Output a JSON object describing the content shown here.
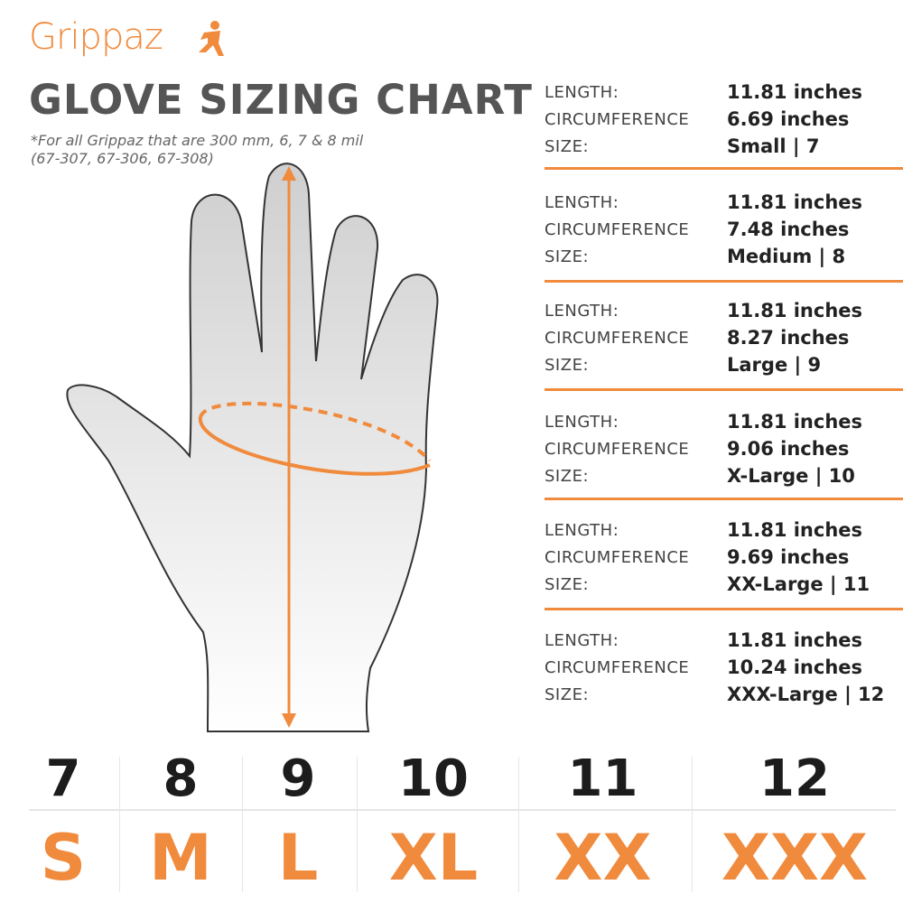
{
  "brand": {
    "logo": "Grippaz",
    "color": "#f08a3c"
  },
  "title": "GLOVE SIZING CHART",
  "note": "*For all Grippaz that are 300 mm, 6, 7 & 8 mil\n(67-307, 67-306, 67-308)",
  "labels": {
    "length": "LENGTH:",
    "circumference": "CIRCUMFERENCE",
    "size": "SIZE:"
  },
  "rows": [
    {
      "length": "11.81 inches",
      "circumference": "6.69 inches",
      "size": "Small | 7"
    },
    {
      "length": "11.81 inches",
      "circumference": "7.48 inches",
      "size": "Medium | 8"
    },
    {
      "length": "11.81 inches",
      "circumference": "8.27 inches",
      "size": "Large | 9"
    },
    {
      "length": "11.81 inches",
      "circumference": "9.06 inches",
      "size": "X-Large | 10"
    },
    {
      "length": "11.81 inches",
      "circumference": "9.69 inches",
      "size": "XX-Large | 11"
    },
    {
      "length": "11.81 inches",
      "circumference": "10.24 inches",
      "size": "XXX-Large | 12"
    }
  ],
  "sizes": [
    {
      "number": "7",
      "letter": "S"
    },
    {
      "number": "8",
      "letter": "M"
    },
    {
      "number": "9",
      "letter": "L"
    },
    {
      "number": "10",
      "letter": "XL"
    },
    {
      "number": "11",
      "letter": "XX"
    },
    {
      "number": "12",
      "letter": "XXX"
    }
  ]
}
